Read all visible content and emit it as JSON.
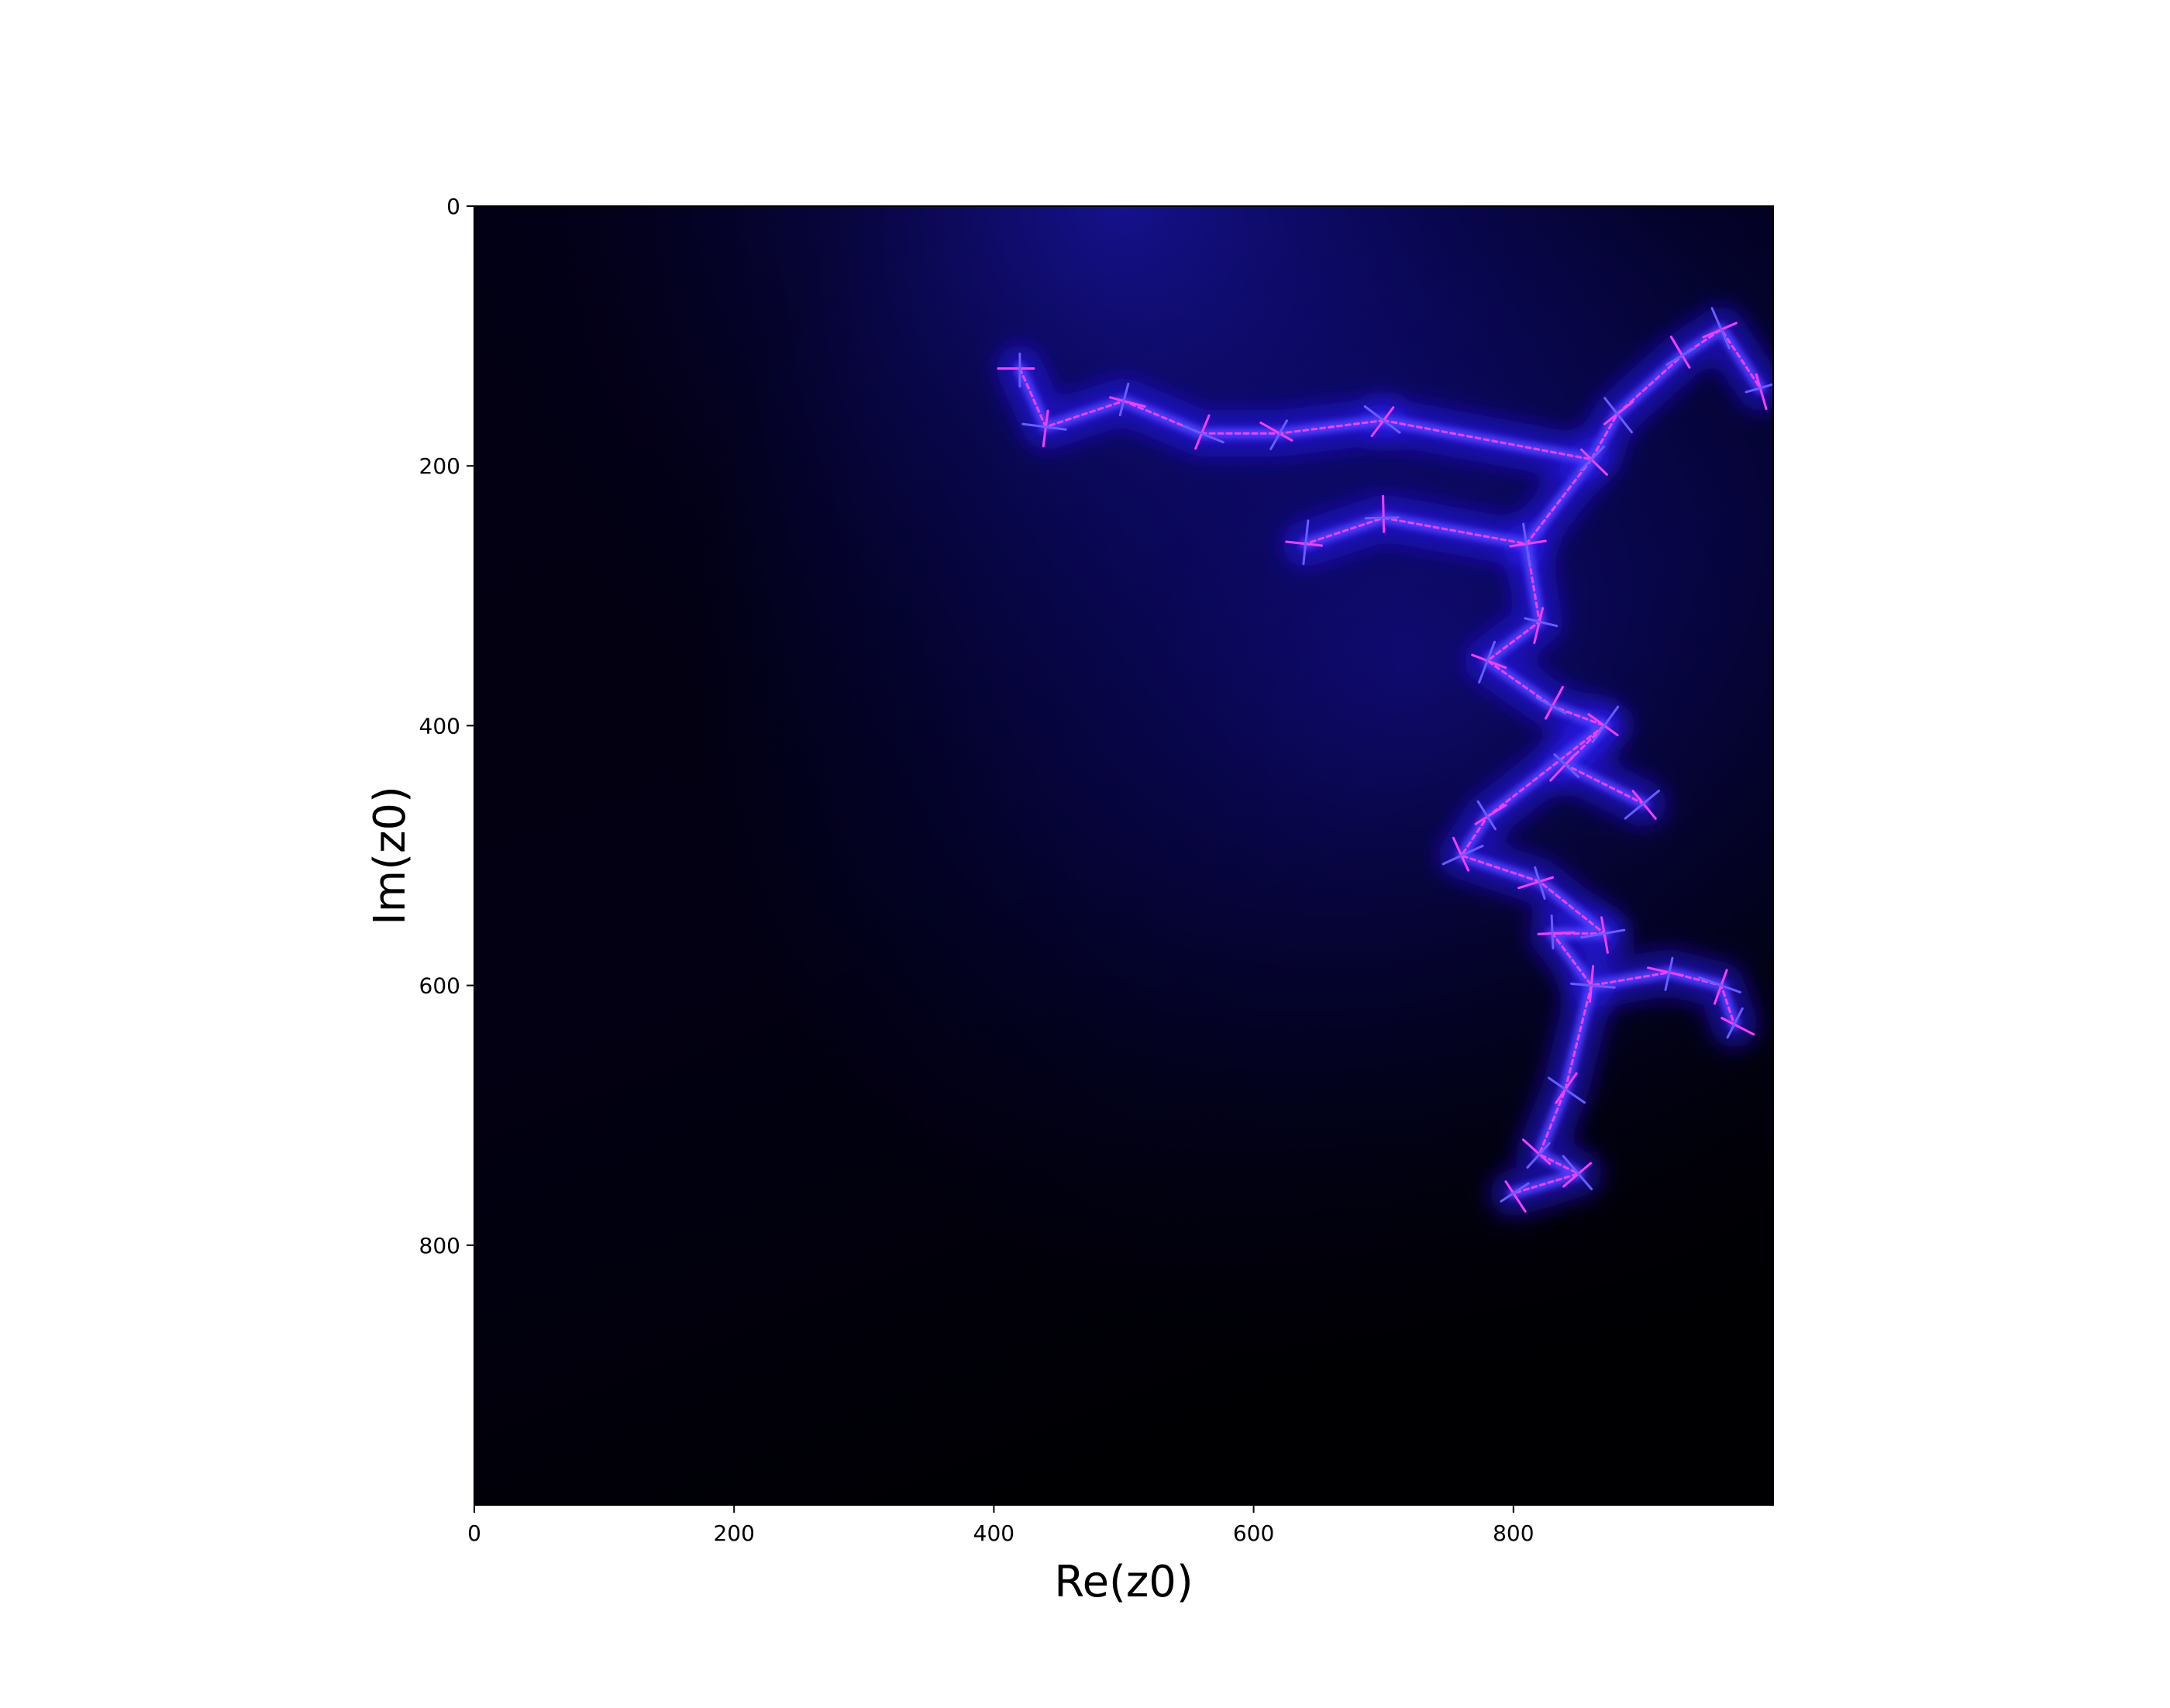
{
  "chart_data": {
    "type": "heatmap",
    "description_kind": "fractal-escape-time-image",
    "xlabel": "Re(z0)",
    "ylabel": "Im(z0)",
    "xlim": [
      0,
      1000
    ],
    "ylim": [
      1000,
      0
    ],
    "xticks": [
      0,
      200,
      400,
      600,
      800
    ],
    "yticks": [
      0,
      200,
      400,
      600,
      800
    ],
    "y_axis_inverted": true,
    "grid": false,
    "colors": {
      "background": "#000000",
      "dark_navy": "#03001a",
      "mid_blue": "#0a0a6e",
      "bright_blue": "#2a1aff",
      "filament_magenta": "#ff3cff",
      "axes_frame": "#000000"
    },
    "filament_path": [
      [
        420,
        125
      ],
      [
        440,
        170
      ],
      [
        500,
        150
      ],
      [
        560,
        175
      ],
      [
        620,
        175
      ],
      [
        700,
        165
      ],
      [
        860,
        195
      ],
      [
        880,
        160
      ],
      [
        930,
        115
      ],
      [
        960,
        95
      ],
      [
        990,
        140
      ],
      [
        810,
        260
      ],
      [
        700,
        240
      ],
      [
        640,
        260
      ],
      [
        820,
        320
      ],
      [
        780,
        350
      ],
      [
        830,
        385
      ],
      [
        870,
        400
      ],
      [
        840,
        430
      ],
      [
        900,
        460
      ],
      [
        780,
        470
      ],
      [
        760,
        500
      ],
      [
        820,
        520
      ],
      [
        870,
        560
      ],
      [
        830,
        560
      ],
      [
        860,
        600
      ],
      [
        920,
        590
      ],
      [
        960,
        600
      ],
      [
        970,
        630
      ],
      [
        840,
        680
      ],
      [
        820,
        730
      ],
      [
        850,
        745
      ],
      [
        800,
        760
      ]
    ]
  }
}
